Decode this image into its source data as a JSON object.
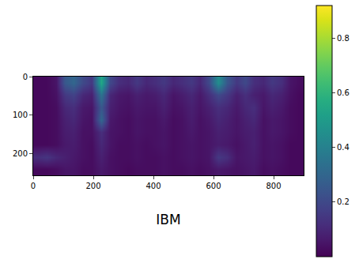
{
  "chart_data": {
    "type": "heatmap",
    "xlabel": "IBM",
    "x": [
      15,
      45,
      75,
      105,
      135,
      165,
      195,
      225,
      255,
      285,
      315,
      345,
      375,
      405,
      435,
      465,
      495,
      525,
      555,
      585,
      615,
      645,
      675,
      705,
      735,
      765,
      795,
      825,
      855,
      885
    ],
    "y": [
      16,
      48,
      80,
      112,
      144,
      176,
      208,
      240
    ],
    "z": [
      [
        0.02,
        0.02,
        0.05,
        0.25,
        0.3,
        0.2,
        0.15,
        0.55,
        0.2,
        0.12,
        0.1,
        0.15,
        0.1,
        0.12,
        0.15,
        0.1,
        0.12,
        0.15,
        0.1,
        0.2,
        0.45,
        0.25,
        0.15,
        0.2,
        0.12,
        0.1,
        0.15,
        0.12,
        0.05,
        0.03
      ],
      [
        0.02,
        0.02,
        0.04,
        0.15,
        0.18,
        0.1,
        0.08,
        0.35,
        0.1,
        0.06,
        0.05,
        0.08,
        0.06,
        0.07,
        0.1,
        0.05,
        0.07,
        0.1,
        0.06,
        0.12,
        0.2,
        0.15,
        0.08,
        0.12,
        0.08,
        0.06,
        0.1,
        0.08,
        0.04,
        0.02
      ],
      [
        0.02,
        0.02,
        0.03,
        0.1,
        0.12,
        0.06,
        0.05,
        0.25,
        0.08,
        0.05,
        0.04,
        0.06,
        0.05,
        0.05,
        0.08,
        0.04,
        0.05,
        0.08,
        0.05,
        0.08,
        0.12,
        0.1,
        0.06,
        0.1,
        0.12,
        0.05,
        0.08,
        0.06,
        0.03,
        0.02
      ],
      [
        0.02,
        0.02,
        0.03,
        0.08,
        0.1,
        0.05,
        0.04,
        0.3,
        0.06,
        0.04,
        0.03,
        0.05,
        0.04,
        0.04,
        0.06,
        0.03,
        0.04,
        0.07,
        0.04,
        0.06,
        0.1,
        0.08,
        0.05,
        0.08,
        0.1,
        0.04,
        0.06,
        0.05,
        0.03,
        0.02
      ],
      [
        0.02,
        0.02,
        0.03,
        0.07,
        0.08,
        0.04,
        0.04,
        0.12,
        0.05,
        0.04,
        0.03,
        0.05,
        0.04,
        0.04,
        0.05,
        0.03,
        0.04,
        0.06,
        0.04,
        0.05,
        0.08,
        0.07,
        0.05,
        0.07,
        0.08,
        0.04,
        0.06,
        0.05,
        0.03,
        0.02
      ],
      [
        0.02,
        0.02,
        0.03,
        0.06,
        0.07,
        0.04,
        0.03,
        0.1,
        0.05,
        0.03,
        0.03,
        0.04,
        0.03,
        0.04,
        0.05,
        0.03,
        0.04,
        0.05,
        0.04,
        0.05,
        0.07,
        0.06,
        0.04,
        0.06,
        0.08,
        0.04,
        0.05,
        0.04,
        0.02,
        0.02
      ],
      [
        0.12,
        0.14,
        0.1,
        0.08,
        0.06,
        0.04,
        0.03,
        0.08,
        0.04,
        0.03,
        0.03,
        0.04,
        0.03,
        0.03,
        0.04,
        0.03,
        0.04,
        0.05,
        0.04,
        0.05,
        0.15,
        0.12,
        0.05,
        0.06,
        0.07,
        0.04,
        0.05,
        0.04,
        0.02,
        0.02
      ],
      [
        0.02,
        0.02,
        0.03,
        0.05,
        0.05,
        0.03,
        0.03,
        0.06,
        0.04,
        0.03,
        0.02,
        0.03,
        0.03,
        0.03,
        0.04,
        0.03,
        0.03,
        0.04,
        0.03,
        0.04,
        0.06,
        0.05,
        0.04,
        0.05,
        0.06,
        0.03,
        0.04,
        0.03,
        0.02,
        0.02
      ]
    ],
    "xlim": [
      0,
      900
    ],
    "ylim": [
      256,
      0
    ],
    "xticks": [
      0,
      200,
      400,
      600,
      800
    ],
    "yticks": [
      0,
      100,
      200
    ],
    "zlim": [
      0,
      0.92
    ],
    "zticks": [
      0.2,
      0.4,
      0.6,
      0.8
    ],
    "color": "Viridis"
  }
}
